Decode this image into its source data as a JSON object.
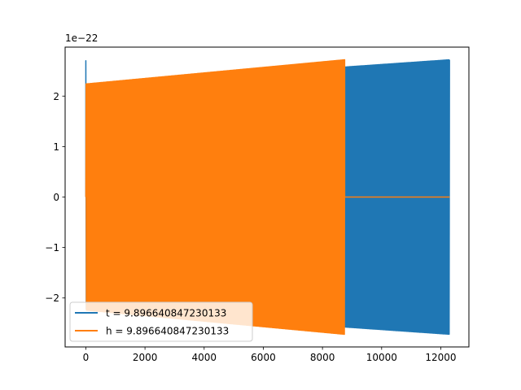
{
  "chart_data": {
    "type": "line",
    "title": "",
    "xlabel": "",
    "ylabel": "",
    "xlim": [
      -700,
      12950
    ],
    "ylim": [
      -2.97,
      2.97
    ],
    "y_scale_label": "1e−22",
    "xticks": [
      0,
      2000,
      4000,
      6000,
      8000,
      10000,
      12000
    ],
    "xtick_labels": [
      "0",
      "2000",
      "4000",
      "6000",
      "8000",
      "10000",
      "12000"
    ],
    "yticks": [
      -2,
      -1,
      0,
      1,
      2
    ],
    "ytick_labels": [
      "−2",
      "−1",
      "0",
      "1",
      "2"
    ],
    "grid": false,
    "legend_position": "lower-left",
    "series": [
      {
        "name": "t = 9.896640847230133",
        "color": "#1f77b4",
        "x_start": 0,
        "x_end": 12300,
        "spike_peak": 2.7,
        "envelope_start": 2.22,
        "envelope_end": 2.72,
        "envelope_at_8750": 2.45
      },
      {
        "name": "h = 9.896640847230133",
        "color": "#ff7f0e",
        "x_start": 0,
        "x_end": 12300,
        "oscillation_end": 8750,
        "envelope_start": 2.24,
        "envelope_end": 2.72,
        "tail_value": 0
      }
    ]
  }
}
